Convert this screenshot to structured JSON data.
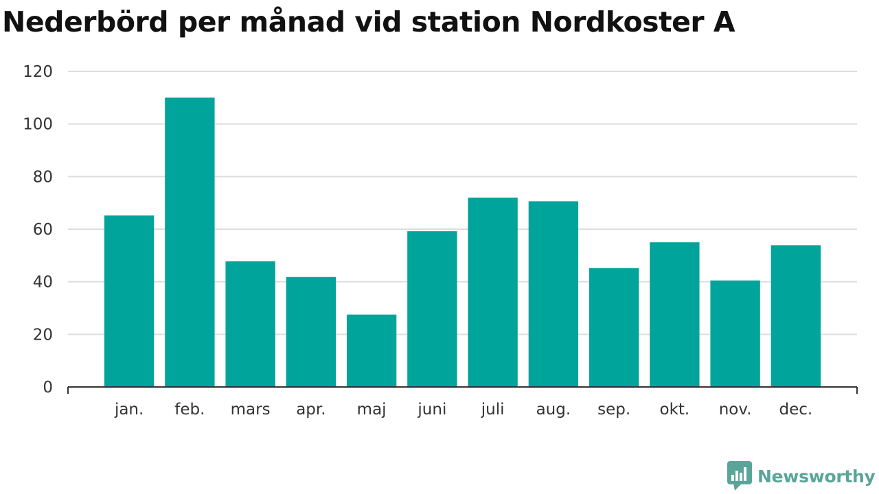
{
  "chart_data": {
    "type": "bar",
    "title": "Nederbörd per månad vid station Nordkoster A",
    "xlabel": "",
    "ylabel": "",
    "categories": [
      "jan.",
      "feb.",
      "mars",
      "apr.",
      "maj",
      "juni",
      "juli",
      "aug.",
      "sep.",
      "okt.",
      "nov.",
      "dec."
    ],
    "values": [
      65.2,
      110,
      47.8,
      41.8,
      27.5,
      59.2,
      72,
      70.6,
      45.2,
      55,
      40.5,
      53.9
    ],
    "ylim": [
      0,
      120
    ],
    "yticks": [
      "0",
      "20",
      "40",
      "60",
      "80",
      "100",
      "120"
    ],
    "grid": true,
    "bar_color": "#00a49a"
  },
  "branding": {
    "name": "Newsworthy",
    "icon": "newsworthy-logo-icon",
    "color": "#5aa59a"
  }
}
